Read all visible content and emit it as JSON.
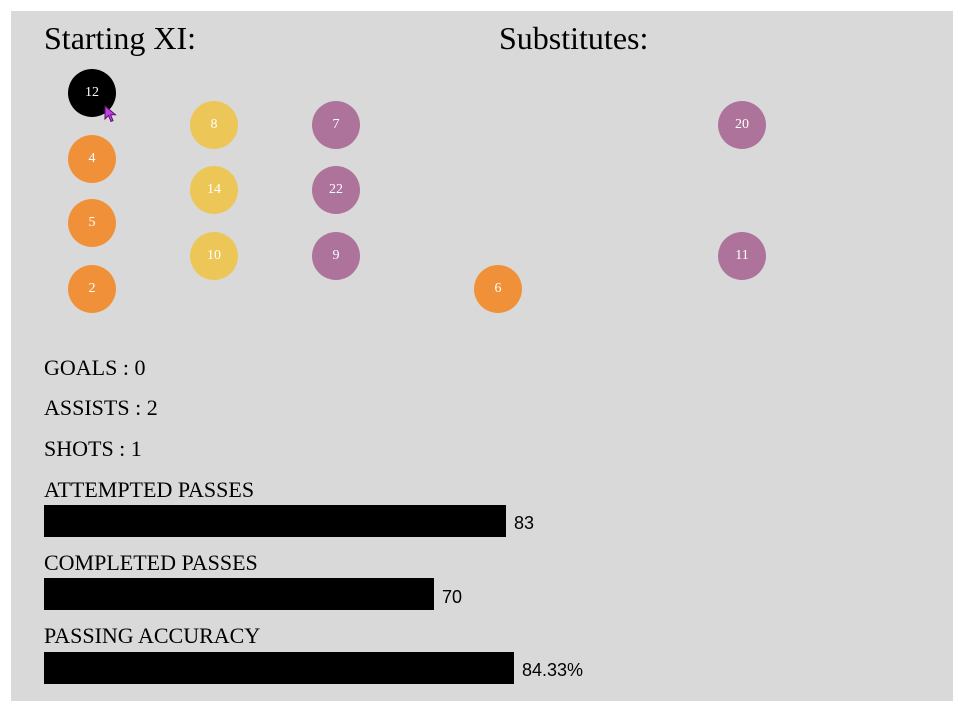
{
  "headings": {
    "starting_xi": "Starting XI:",
    "substitutes": "Substitutes:"
  },
  "colors": {
    "panel": "#d9d9d9",
    "selected": "#000000",
    "defender": "#f0913a",
    "midfielder": "#ecc656",
    "forward": "#ad739b",
    "bar": "#000000",
    "cursor": "#c040e0"
  },
  "starting_xi": [
    {
      "number": "12",
      "role": "selected"
    },
    {
      "number": "4",
      "role": "defender"
    },
    {
      "number": "5",
      "role": "defender"
    },
    {
      "number": "2",
      "role": "defender"
    },
    {
      "number": "8",
      "role": "midfielder"
    },
    {
      "number": "14",
      "role": "midfielder"
    },
    {
      "number": "10",
      "role": "midfielder"
    },
    {
      "number": "7",
      "role": "forward"
    },
    {
      "number": "22",
      "role": "forward"
    },
    {
      "number": "9",
      "role": "forward"
    }
  ],
  "substitutes": [
    {
      "number": "6",
      "role": "defender"
    },
    {
      "number": "20",
      "role": "forward"
    },
    {
      "number": "11",
      "role": "forward"
    }
  ],
  "stats": {
    "goals": "GOALS : 0",
    "assists": "ASSISTS : 2",
    "shots": "SHOTS : 1"
  },
  "bars": {
    "attempted": {
      "label": "ATTEMPTED PASSES",
      "value": 83,
      "display": "83"
    },
    "completed": {
      "label": "COMPLETED PASSES",
      "value": 70,
      "display": "70"
    },
    "accuracy": {
      "label": "PASSING ACCURACY",
      "value": 84.33,
      "display": "84.33%"
    }
  }
}
